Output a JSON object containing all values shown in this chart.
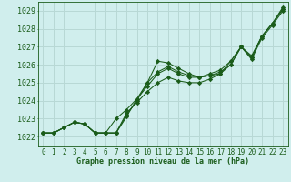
{
  "title": "Graphe pression niveau de la mer (hPa)",
  "bg_color": "#d0eeed",
  "grid_color": "#b8d8d5",
  "line_color": "#1a5c1a",
  "text_color": "#1a5c1a",
  "xlim": [
    -0.5,
    23.5
  ],
  "ylim": [
    1021.5,
    1029.5
  ],
  "yticks": [
    1022,
    1023,
    1024,
    1025,
    1026,
    1027,
    1028,
    1029
  ],
  "xtick_labels": [
    "0",
    "1",
    "2",
    "3",
    "4",
    "5",
    "6",
    "7",
    "8",
    "9",
    "10",
    "11",
    "12",
    "13",
    "14",
    "15",
    "16",
    "17",
    "18",
    "19",
    "20",
    "21",
    "22",
    "23"
  ],
  "xticks": [
    0,
    1,
    2,
    3,
    4,
    5,
    6,
    7,
    8,
    9,
    10,
    11,
    12,
    13,
    14,
    15,
    16,
    17,
    18,
    19,
    20,
    21,
    22,
    23
  ],
  "series": [
    [
      1022.2,
      1022.2,
      1022.5,
      1022.8,
      1022.7,
      1022.2,
      1022.2,
      1022.2,
      1023.1,
      1024.1,
      1025.0,
      1026.2,
      1026.1,
      1025.8,
      1025.5,
      1025.3,
      1025.4,
      1025.5,
      1026.0,
      1027.0,
      1026.3,
      1027.5,
      1028.2,
      1029.0
    ],
    [
      1022.2,
      1022.2,
      1022.5,
      1022.8,
      1022.7,
      1022.2,
      1022.2,
      1023.0,
      1023.5,
      1024.1,
      1024.8,
      1025.5,
      1025.8,
      1025.5,
      1025.3,
      1025.3,
      1025.5,
      1025.7,
      1026.2,
      1027.0,
      1026.5,
      1027.6,
      1028.3,
      1029.1
    ],
    [
      1022.2,
      1022.2,
      1022.5,
      1022.8,
      1022.7,
      1022.2,
      1022.2,
      1022.2,
      1023.2,
      1024.0,
      1025.0,
      1025.6,
      1025.9,
      1025.6,
      1025.4,
      1025.3,
      1025.4,
      1025.6,
      1026.0,
      1027.0,
      1026.4,
      1027.6,
      1028.3,
      1029.2
    ],
    [
      1022.2,
      1022.2,
      1022.5,
      1022.8,
      1022.7,
      1022.2,
      1022.2,
      1022.2,
      1023.3,
      1023.9,
      1024.5,
      1025.0,
      1025.3,
      1025.1,
      1025.0,
      1025.0,
      1025.2,
      1025.5,
      1026.2,
      1027.0,
      1026.4,
      1027.6,
      1028.3,
      1029.1
    ]
  ],
  "title_fontsize": 6.0,
  "tick_fontsize": 5.5,
  "ytick_fontsize": 6.0
}
